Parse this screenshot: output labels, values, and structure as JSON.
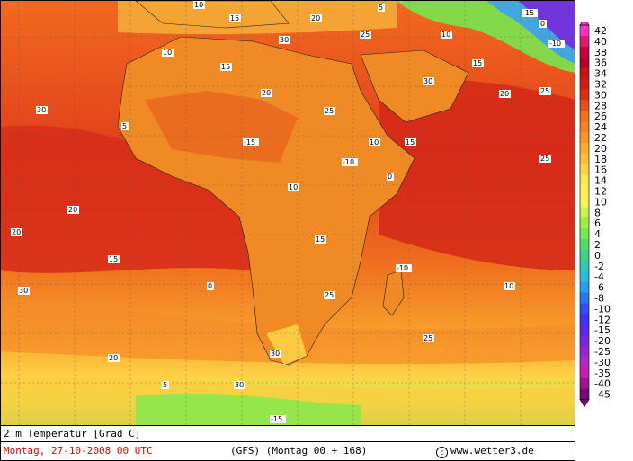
{
  "map": {
    "title": "2 m Temperatur [Grad C]",
    "date": "Montag, 27-10-2008  00 UTC",
    "model": "(GFS)  (Montag 00 + 168)",
    "copyright": "www.wetter3.de",
    "date_color": "#e00000",
    "labels": [
      "10",
      "15",
      "20",
      "25",
      "30",
      "5",
      "-15",
      "-10",
      "0",
      "10",
      "15",
      "20",
      "25",
      "30"
    ]
  },
  "scale": {
    "ticks": [
      "42",
      "40",
      "38",
      "36",
      "34",
      "32",
      "30",
      "28",
      "26",
      "24",
      "22",
      "20",
      "18",
      "16",
      "14",
      "12",
      "10",
      "8",
      "6",
      "4",
      "2",
      "0",
      "-2",
      "-4",
      "-6",
      "-8",
      "-10",
      "-12",
      "-15",
      "-20",
      "-25",
      "-30",
      "-35",
      "-40",
      "-45"
    ],
    "colors": [
      "#ff33cc",
      "#e01a6e",
      "#c80040",
      "#b40028",
      "#c81414",
      "#d21e14",
      "#dc3214",
      "#e6501e",
      "#f06e1e",
      "#f58228",
      "#fa9628",
      "#ffaa32",
      "#ffbe3c",
      "#ffd246",
      "#ffe650",
      "#fff05a",
      "#f0f55a",
      "#c8f050",
      "#a0eb46",
      "#78e650",
      "#50dc64",
      "#3cd28c",
      "#32c8b4",
      "#28beda",
      "#28a0f0",
      "#2878f0",
      "#3250f0",
      "#3c32f0",
      "#5a28e6",
      "#7828dc",
      "#9628d2",
      "#b428c8",
      "#c81eb4",
      "#a01490",
      "#780a6e"
    ]
  }
}
